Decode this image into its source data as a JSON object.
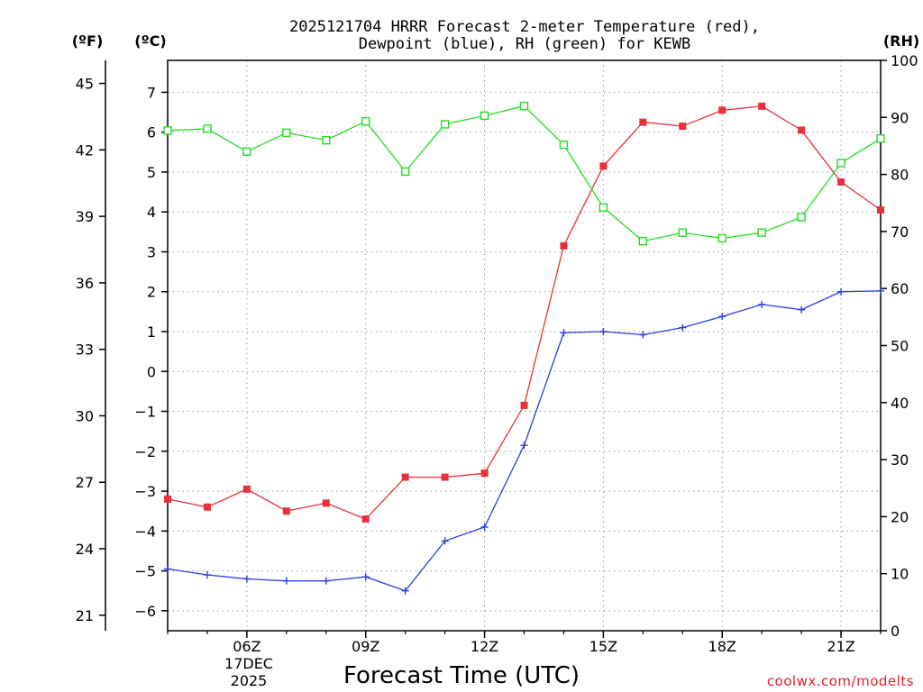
{
  "chart_data": {
    "type": "line",
    "title_line1": "2025121704 HRRR Forecast 2-meter Temperature (red),",
    "title_line2": "Dewpoint (blue), RH (green) for KEWB",
    "xlabel": "Forecast Time (UTC)",
    "credit": "coolwx.com/modelts",
    "left_unit_f": "(ºF)",
    "left_unit_c": "(ºC)",
    "right_unit": "(RH)",
    "date_label_line1": "17DEC",
    "date_label_line2": "2025",
    "x_hours": [
      4,
      5,
      6,
      7,
      8,
      9,
      10,
      11,
      12,
      13,
      14,
      15,
      16,
      17,
      18,
      19,
      20,
      21,
      22
    ],
    "x_range": [
      4,
      22
    ],
    "x_ticks": [
      {
        "hour": 6,
        "label": "06Z"
      },
      {
        "hour": 9,
        "label": "09Z"
      },
      {
        "hour": 12,
        "label": "12Z"
      },
      {
        "hour": 15,
        "label": "15Z"
      },
      {
        "hour": 18,
        "label": "18Z"
      },
      {
        "hour": 21,
        "label": "21Z"
      }
    ],
    "celsius_range": [
      -6.5,
      7.8
    ],
    "celsius_ticks": [
      -6,
      -5,
      -4,
      -3,
      -2,
      -1,
      0,
      1,
      2,
      3,
      4,
      5,
      6,
      7
    ],
    "fahrenheit_ticks": [
      21,
      24,
      27,
      30,
      33,
      36,
      39,
      42,
      45
    ],
    "rh_range": [
      0,
      100
    ],
    "rh_ticks": [
      0,
      10,
      20,
      30,
      40,
      50,
      60,
      70,
      80,
      90,
      100
    ],
    "series": [
      {
        "name": "Temperature",
        "axis": "celsius",
        "color": "#e8303a",
        "marker": "filled-square",
        "values": [
          -3.2,
          -3.4,
          -2.95,
          -3.5,
          -3.3,
          -3.7,
          -2.65,
          -2.65,
          -2.55,
          -0.85,
          3.15,
          5.15,
          6.25,
          6.15,
          6.55,
          6.65,
          6.05,
          4.75,
          4.05
        ]
      },
      {
        "name": "Dewpoint",
        "axis": "celsius",
        "color": "#2a3fe0",
        "marker": "plus",
        "values": [
          -4.95,
          -5.1,
          -5.2,
          -5.25,
          -5.25,
          -5.15,
          -5.5,
          -4.25,
          -3.9,
          -1.85,
          0.97,
          1.0,
          0.92,
          1.1,
          1.38,
          1.68,
          1.55,
          2.0,
          2.02
        ]
      },
      {
        "name": "RH",
        "axis": "rh",
        "color": "#22dd22",
        "marker": "open-square",
        "values": [
          87.7,
          88.0,
          84.0,
          87.3,
          86.0,
          89.3,
          80.5,
          88.8,
          90.3,
          92.0,
          85.2,
          74.2,
          68.3,
          69.8,
          68.8,
          69.8,
          72.5,
          82.0,
          86.3
        ]
      }
    ]
  }
}
